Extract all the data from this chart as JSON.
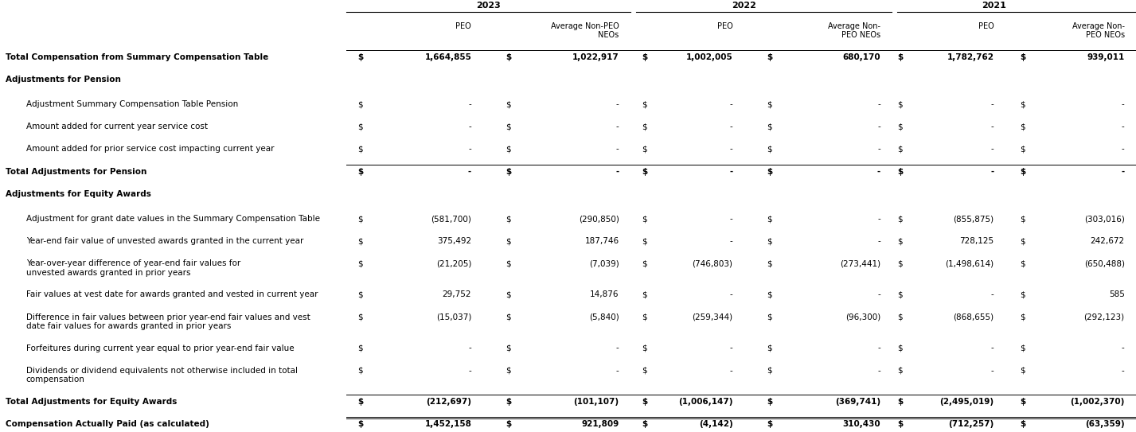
{
  "title": "Total Compensation from Summary Compensation Table",
  "years": [
    "2023",
    "2022",
    "2021"
  ],
  "col_headers_year": [
    "2023",
    "2022",
    "2021"
  ],
  "col_subheaders": [
    "PEO",
    "Average Non-PEO\nNEOs",
    "PEO",
    "Average Non-\nPEO NEOs",
    "PEO",
    "Average Non-\nPEO NEOs"
  ],
  "rows": [
    {
      "label": "Total Compensation from Summary Compensation Table",
      "bold": true,
      "underline_top": true,
      "values": [
        "1,664,855",
        "1,022,917",
        "1,002,005",
        "680,170",
        "1,782,762",
        "939,011"
      ],
      "show_dollar": true,
      "indent": 0
    },
    {
      "label": "Adjustments for Pension",
      "bold": true,
      "section_header": true,
      "values": [
        "",
        "",
        "",
        "",
        "",
        ""
      ],
      "show_dollar": false,
      "indent": 0
    },
    {
      "label": "Adjustment Summary Compensation Table Pension",
      "bold": false,
      "values": [
        "-",
        "-",
        "-",
        "-",
        "-",
        "-"
      ],
      "show_dollar": true,
      "indent": 1
    },
    {
      "label": "Amount added for current year service cost",
      "bold": false,
      "values": [
        "-",
        "-",
        "-",
        "-",
        "-",
        "-"
      ],
      "show_dollar": true,
      "indent": 1
    },
    {
      "label": "Amount added for prior service cost impacting current year",
      "bold": false,
      "values": [
        "-",
        "-",
        "-",
        "-",
        "-",
        "-"
      ],
      "show_dollar": true,
      "indent": 1
    },
    {
      "label": "Total Adjustments for Pension",
      "bold": true,
      "underline_top": true,
      "values": [
        "-",
        "-",
        "-",
        "-",
        "-",
        "-"
      ],
      "show_dollar": true,
      "indent": 0
    },
    {
      "label": "Adjustments for Equity Awards",
      "bold": true,
      "section_header": true,
      "values": [
        "",
        "",
        "",
        "",
        "",
        ""
      ],
      "show_dollar": false,
      "indent": 0
    },
    {
      "label": "Adjustment for grant date values in the Summary Compensation Table",
      "bold": false,
      "values": [
        "(581,700)",
        "(290,850)",
        "-",
        "-",
        "(855,875)",
        "(303,016)"
      ],
      "show_dollar": true,
      "indent": 1
    },
    {
      "label": "Year-end fair value of unvested awards granted in the current year",
      "bold": false,
      "values": [
        "375,492",
        "187,746",
        "-",
        "-",
        "728,125",
        "242,672"
      ],
      "show_dollar": true,
      "indent": 1
    },
    {
      "label": "Year-over-year difference of year-end fair values for\nunvested awards granted in prior years",
      "bold": false,
      "values": [
        "(21,205)",
        "(7,039)",
        "(746,803)",
        "(273,441)",
        "(1,498,614)",
        "(650,488)"
      ],
      "show_dollar": true,
      "indent": 1
    },
    {
      "label": "Fair values at vest date for awards granted and vested in current year",
      "bold": false,
      "values": [
        "29,752",
        "14,876",
        "-",
        "-",
        "-",
        "585"
      ],
      "show_dollar": true,
      "indent": 1
    },
    {
      "label": "Difference in fair values between prior year-end fair values and vest\ndate fair values for awards granted in prior years",
      "bold": false,
      "values": [
        "(15,037)",
        "(5,840)",
        "(259,344)",
        "(96,300)",
        "(868,655)",
        "(292,123)"
      ],
      "show_dollar": true,
      "indent": 1
    },
    {
      "label": "Forfeitures during current year equal to prior year-end fair value",
      "bold": false,
      "values": [
        "-",
        "-",
        "-",
        "-",
        "-",
        "-"
      ],
      "show_dollar": true,
      "indent": 1
    },
    {
      "label": "Dividends or dividend equivalents not otherwise included in total\ncompensation",
      "bold": false,
      "values": [
        "-",
        "-",
        "-",
        "-",
        "-",
        "-"
      ],
      "show_dollar": true,
      "indent": 1
    },
    {
      "label": "Total Adjustments for Equity Awards",
      "bold": true,
      "underline_top": true,
      "values": [
        "(212,697)",
        "(101,107)",
        "(1,006,147)",
        "(369,741)",
        "(2,495,019)",
        "(1,002,370)"
      ],
      "show_dollar": true,
      "indent": 0
    },
    {
      "label": "Compensation Actually Paid (as calculated)",
      "bold": true,
      "underline_both": true,
      "italic": false,
      "values": [
        "1,452,158",
        "921,809",
        "(4,142)",
        "310,430",
        "(712,257)",
        "(63,359)"
      ],
      "show_dollar": true,
      "indent": 0
    }
  ],
  "bg_color": "#ffffff",
  "text_color": "#000000",
  "font_size": 7.5,
  "header_font_size": 8.0
}
